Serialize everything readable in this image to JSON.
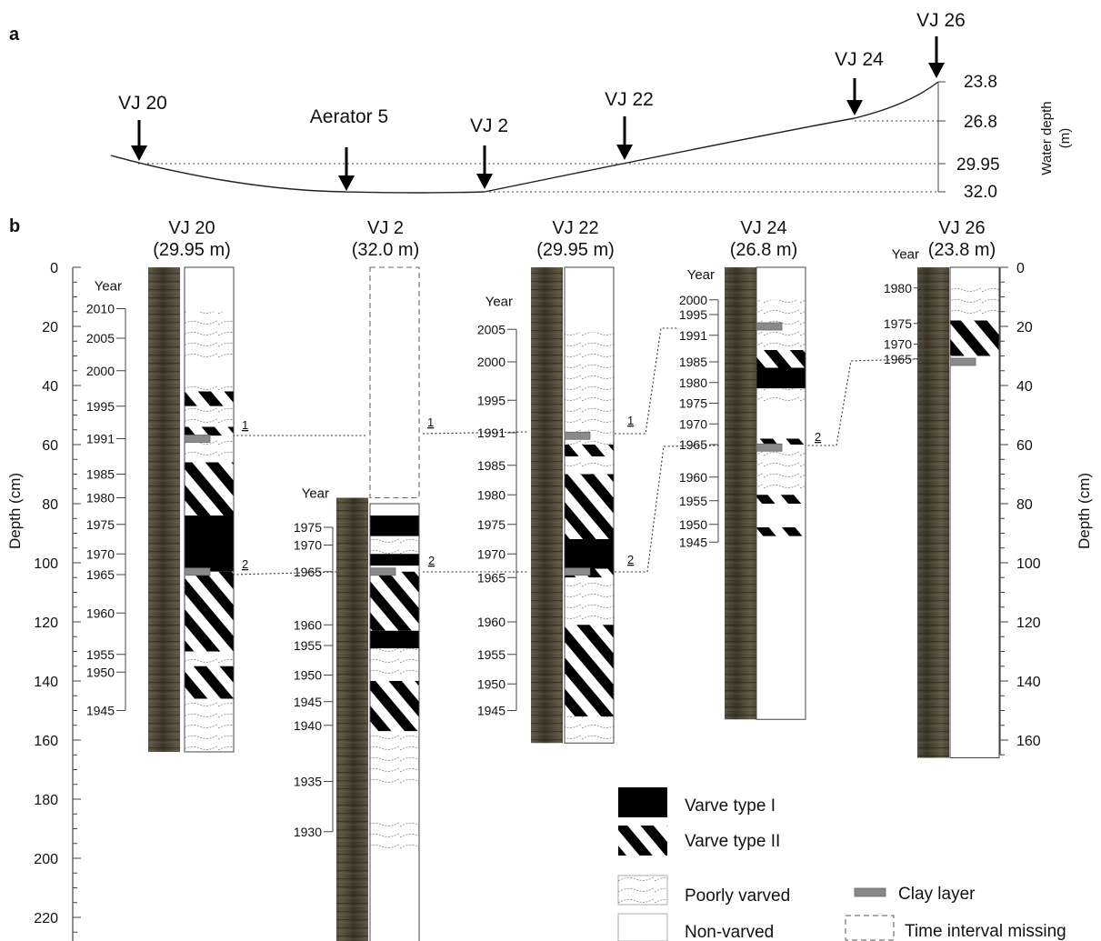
{
  "panel_labels": {
    "a": "a",
    "b": "b"
  },
  "profile": {
    "sites": [
      {
        "label": "VJ 20"
      },
      {
        "label": "Aerator 5"
      },
      {
        "label": "VJ 2"
      },
      {
        "label": "VJ 22"
      },
      {
        "label": "VJ 24"
      },
      {
        "label": "VJ 26"
      }
    ],
    "depth_marks": [
      "23.8",
      "26.8",
      "29.95",
      "32.0"
    ],
    "axis_label": "Water depth",
    "axis_unit": "(m)"
  },
  "depth_axis": {
    "label": "Depth (cm)",
    "ticks": [
      "0",
      "20",
      "40",
      "60",
      "80",
      "100",
      "120",
      "140",
      "160",
      "180",
      "200",
      "220"
    ],
    "ticks_right": [
      "0",
      "20",
      "40",
      "60",
      "80",
      "100",
      "120",
      "140",
      "160"
    ],
    "max_depth_cm": 232
  },
  "year_label": "Year",
  "cores": [
    {
      "name": "VJ 20",
      "water_depth": "(29.95 m)",
      "top_cm": 0,
      "bottom_cm": 164,
      "units": [
        {
          "from": 0,
          "to": 15,
          "type": "non-varved"
        },
        {
          "from": 15,
          "to": 31,
          "type": "poorly-varved"
        },
        {
          "from": 31,
          "to": 38,
          "type": "non-varved"
        },
        {
          "from": 38,
          "to": 42,
          "type": "poorly-varved"
        },
        {
          "from": 42,
          "to": 47,
          "type": "varve-II"
        },
        {
          "from": 47,
          "to": 54,
          "type": "poorly-varved"
        },
        {
          "from": 54,
          "to": 57,
          "type": "varve-II"
        },
        {
          "from": 57,
          "to": 66,
          "type": "poorly-varved"
        },
        {
          "from": 66,
          "to": 84,
          "type": "varve-II"
        },
        {
          "from": 84,
          "to": 103,
          "type": "varve-I"
        },
        {
          "from": 103,
          "to": 106,
          "type": "varve-II"
        },
        {
          "from": 106,
          "to": 130,
          "type": "varve-II"
        },
        {
          "from": 130,
          "to": 135,
          "type": "poorly-varved"
        },
        {
          "from": 135,
          "to": 146,
          "type": "varve-II"
        },
        {
          "from": 146,
          "to": 164,
          "type": "poorly-varved"
        }
      ],
      "clay": [
        58,
        103
      ],
      "years": [
        {
          "year": "2010",
          "depth": 14
        },
        {
          "year": "2005",
          "depth": 24
        },
        {
          "year": "2000",
          "depth": 35
        },
        {
          "year": "1995",
          "depth": 47
        },
        {
          "year": "1991",
          "depth": 58
        },
        {
          "year": "1985",
          "depth": 70
        },
        {
          "year": "1980",
          "depth": 78
        },
        {
          "year": "1975",
          "depth": 87
        },
        {
          "year": "1970",
          "depth": 97
        },
        {
          "year": "1965",
          "depth": 104
        },
        {
          "year": "1960",
          "depth": 117
        },
        {
          "year": "1955",
          "depth": 131
        },
        {
          "year": "1950",
          "depth": 137
        },
        {
          "year": "1945",
          "depth": 150
        }
      ],
      "year_bracket": [
        14,
        150
      ]
    },
    {
      "name": "VJ 2",
      "water_depth": "(32.0 m)",
      "top_cm": 0,
      "bottom_cm": 232,
      "missing": [
        0,
        78
      ],
      "units": [
        {
          "from": 80,
          "to": 84,
          "type": "non-varved"
        },
        {
          "from": 84,
          "to": 91,
          "type": "varve-I"
        },
        {
          "from": 91,
          "to": 97,
          "type": "poorly-varved"
        },
        {
          "from": 97,
          "to": 101,
          "type": "varve-I"
        },
        {
          "from": 101,
          "to": 103,
          "type": "poorly-varved"
        },
        {
          "from": 103,
          "to": 123,
          "type": "varve-II"
        },
        {
          "from": 123,
          "to": 129,
          "type": "varve-I"
        },
        {
          "from": 129,
          "to": 140,
          "type": "poorly-varved"
        },
        {
          "from": 140,
          "to": 157,
          "type": "varve-II"
        },
        {
          "from": 157,
          "to": 176,
          "type": "poorly-varved"
        },
        {
          "from": 176,
          "to": 186,
          "type": "non-varved"
        },
        {
          "from": 186,
          "to": 197,
          "type": "poorly-varved"
        },
        {
          "from": 197,
          "to": 232,
          "type": "non-varved"
        }
      ],
      "clay": [
        103
      ],
      "years": [
        {
          "year": "1975",
          "depth": 88
        },
        {
          "year": "1970",
          "depth": 94
        },
        {
          "year": "1965",
          "depth": 103
        },
        {
          "year": "1960",
          "depth": 121
        },
        {
          "year": "1955",
          "depth": 128
        },
        {
          "year": "1950",
          "depth": 138
        },
        {
          "year": "1945",
          "depth": 147
        },
        {
          "year": "1940",
          "depth": 155
        },
        {
          "year": "1935",
          "depth": 174
        },
        {
          "year": "1930",
          "depth": 191
        }
      ],
      "year_bracket": [
        88,
        191
      ],
      "year_label_depth": 78
    },
    {
      "name": "VJ 22",
      "water_depth": "(29.95 m)",
      "top_cm": 0,
      "bottom_cm": 161,
      "units": [
        {
          "from": 0,
          "to": 22,
          "type": "non-varved"
        },
        {
          "from": 22,
          "to": 58,
          "type": "poorly-varved"
        },
        {
          "from": 58,
          "to": 60,
          "type": "poorly-varved"
        },
        {
          "from": 60,
          "to": 64,
          "type": "varve-II"
        },
        {
          "from": 64,
          "to": 70,
          "type": "poorly-varved"
        },
        {
          "from": 70,
          "to": 92,
          "type": "varve-II"
        },
        {
          "from": 92,
          "to": 102,
          "type": "varve-I"
        },
        {
          "from": 102,
          "to": 105,
          "type": "varve-II"
        },
        {
          "from": 105,
          "to": 121,
          "type": "poorly-varved"
        },
        {
          "from": 121,
          "to": 152,
          "type": "varve-II"
        },
        {
          "from": 152,
          "to": 161,
          "type": "poorly-varved"
        }
      ],
      "clay": [
        57,
        103
      ],
      "years": [
        {
          "year": "2005",
          "depth": 21
        },
        {
          "year": "2000",
          "depth": 32
        },
        {
          "year": "1995",
          "depth": 45
        },
        {
          "year": "1991",
          "depth": 56
        },
        {
          "year": "1985",
          "depth": 67
        },
        {
          "year": "1980",
          "depth": 77
        },
        {
          "year": "1975",
          "depth": 87
        },
        {
          "year": "1970",
          "depth": 97
        },
        {
          "year": "1965",
          "depth": 105
        },
        {
          "year": "1960",
          "depth": 120
        },
        {
          "year": "1955",
          "depth": 131
        },
        {
          "year": "1950",
          "depth": 141
        },
        {
          "year": "1945",
          "depth": 150
        }
      ],
      "year_bracket": [
        21,
        150
      ],
      "year_label_depth": 13
    },
    {
      "name": "VJ 24",
      "water_depth": "(26.8 m)",
      "top_cm": 0,
      "bottom_cm": 153,
      "units": [
        {
          "from": 0,
          "to": 11,
          "type": "non-varved"
        },
        {
          "from": 11,
          "to": 19,
          "type": "poorly-varved"
        },
        {
          "from": 19,
          "to": 22,
          "type": "poorly-varved"
        },
        {
          "from": 22,
          "to": 28,
          "type": "poorly-varved"
        },
        {
          "from": 28,
          "to": 34,
          "type": "varve-II"
        },
        {
          "from": 34,
          "to": 41,
          "type": "varve-I"
        },
        {
          "from": 41,
          "to": 46,
          "type": "poorly-varved"
        },
        {
          "from": 46,
          "to": 58,
          "type": "non-varved"
        },
        {
          "from": 58,
          "to": 60,
          "type": "varve-II"
        },
        {
          "from": 60,
          "to": 62,
          "type": "poorly-varved"
        },
        {
          "from": 62,
          "to": 77,
          "type": "poorly-varved"
        },
        {
          "from": 77,
          "to": 80,
          "type": "varve-II"
        },
        {
          "from": 80,
          "to": 88,
          "type": "non-varved"
        },
        {
          "from": 88,
          "to": 91,
          "type": "varve-II"
        },
        {
          "from": 91,
          "to": 153,
          "type": "non-varved"
        }
      ],
      "clay": [
        20,
        61
      ],
      "years": [
        {
          "year": "2000",
          "depth": 11
        },
        {
          "year": "1995",
          "depth": 16
        },
        {
          "year": "1991",
          "depth": 23
        },
        {
          "year": "1985",
          "depth": 32
        },
        {
          "year": "1980",
          "depth": 39
        },
        {
          "year": "1975",
          "depth": 46
        },
        {
          "year": "1970",
          "depth": 53
        },
        {
          "year": "1965",
          "depth": 60
        },
        {
          "year": "1960",
          "depth": 71
        },
        {
          "year": "1955",
          "depth": 79
        },
        {
          "year": "1950",
          "depth": 87
        },
        {
          "year": "1945",
          "depth": 93
        }
      ],
      "year_bracket": [
        11,
        93
      ],
      "year_label_depth": 4
    },
    {
      "name": "VJ 26",
      "water_depth": "(23.8 m)",
      "top_cm": 0,
      "bottom_cm": 166,
      "units": [
        {
          "from": 0,
          "to": 5,
          "type": "non-varved"
        },
        {
          "from": 5,
          "to": 18,
          "type": "poorly-varved"
        },
        {
          "from": 18,
          "to": 30,
          "type": "varve-II"
        },
        {
          "from": 30,
          "to": 166,
          "type": "non-varved"
        }
      ],
      "clay": [
        32
      ],
      "years": [
        {
          "year": "1980",
          "depth": 7
        },
        {
          "year": "1975",
          "depth": 19
        },
        {
          "year": "1970",
          "depth": 26
        },
        {
          "year": "1965",
          "depth": 31
        }
      ],
      "year_bracket": [
        7,
        31
      ],
      "year_label_depth": -3
    }
  ],
  "correlations": [
    {
      "label": "1",
      "year": "1991"
    },
    {
      "label": "2",
      "year": "1965"
    }
  ],
  "legend": {
    "varve_I": "Varve type I",
    "varve_II": "Varve type II",
    "poorly": "Poorly varved",
    "non": "Non-varved",
    "clay": "Clay layer",
    "missing": "Time interval missing"
  }
}
